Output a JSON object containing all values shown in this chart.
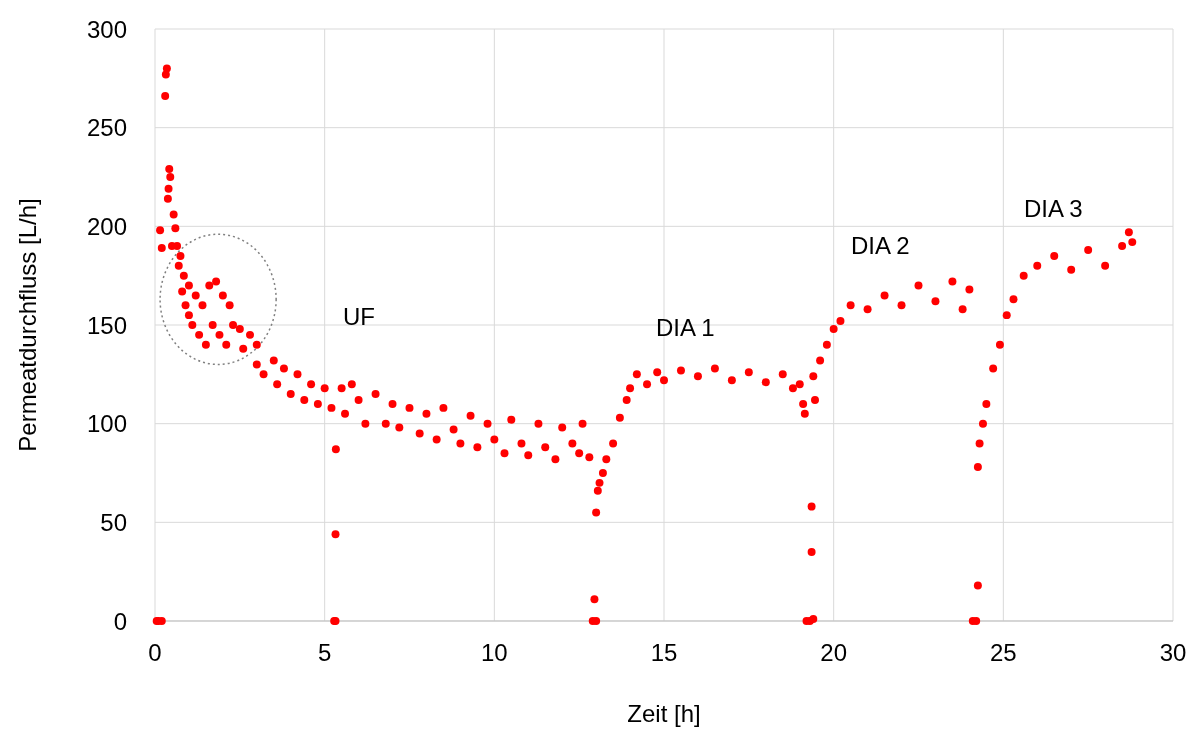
{
  "chart_data": {
    "type": "scatter",
    "xlabel": "Zeit [h]",
    "ylabel": "Permeatdurchfluss [L/h]",
    "xlim": [
      0,
      30
    ],
    "xticks": [
      0,
      5,
      10,
      15,
      20,
      25,
      30
    ],
    "ylim": [
      0,
      300
    ],
    "yticks": [
      0,
      50,
      100,
      150,
      200,
      250,
      300
    ],
    "grid": true,
    "marker": "circle",
    "annotations": [
      "UF",
      "DIA 1",
      "DIA 2",
      "DIA 3"
    ],
    "series": [
      {
        "color": "#ff0000",
        "x": [
          0.05,
          0.1,
          0.2,
          0.15,
          0.2,
          0.3,
          0.32,
          0.35,
          0.38,
          0.4,
          0.42,
          0.45,
          0.5,
          0.55,
          0.6,
          0.65,
          0.7,
          0.75,
          0.8,
          0.85,
          0.9,
          1.0,
          1.0,
          1.1,
          1.2,
          1.3,
          1.4,
          1.5,
          1.6,
          1.7,
          1.8,
          1.9,
          2.0,
          2.1,
          2.2,
          2.3,
          2.5,
          2.6,
          2.8,
          3.0,
          3.0,
          3.2,
          3.5,
          3.6,
          3.8,
          4.0,
          4.2,
          4.4,
          4.6,
          4.8,
          5.0,
          5.2,
          5.28,
          5.32,
          5.33,
          5.32,
          5.5,
          5.6,
          5.8,
          6.0,
          6.2,
          6.5,
          6.8,
          7.0,
          7.2,
          7.5,
          7.8,
          8.0,
          8.3,
          8.5,
          8.8,
          9.0,
          9.3,
          9.5,
          9.8,
          10.0,
          10.3,
          10.5,
          10.8,
          11.0,
          11.3,
          11.5,
          11.8,
          12.0,
          12.3,
          12.5,
          12.6,
          12.8,
          12.9,
          13.0,
          12.95,
          13.0,
          13.05,
          13.1,
          13.2,
          13.3,
          13.5,
          13.7,
          13.9,
          14.0,
          14.2,
          14.5,
          14.8,
          15.0,
          15.5,
          16.0,
          16.5,
          17.0,
          17.5,
          18.0,
          18.5,
          18.8,
          19.0,
          19.1,
          19.15,
          19.2,
          19.3,
          19.4,
          19.35,
          19.35,
          19.45,
          19.4,
          19.6,
          19.8,
          20.0,
          20.2,
          20.5,
          21.0,
          21.5,
          22.0,
          22.5,
          23.0,
          23.5,
          24.0,
          23.8,
          24.1,
          24.2,
          24.25,
          24.25,
          24.3,
          24.4,
          24.5,
          24.7,
          24.9,
          25.1,
          25.3,
          25.6,
          26.0,
          26.5,
          27.0,
          27.5,
          28.0,
          28.5,
          28.7,
          28.8
        ],
        "values": [
          0,
          0,
          0,
          198,
          189,
          266,
          277,
          280,
          214,
          219,
          229,
          225,
          190,
          206,
          199,
          190,
          180,
          185,
          167,
          175,
          160,
          155,
          170,
          150,
          165,
          145,
          160,
          140,
          170,
          150,
          172,
          145,
          165,
          140,
          160,
          150,
          148,
          138,
          145,
          130,
          140,
          125,
          132,
          120,
          128,
          115,
          125,
          112,
          120,
          110,
          118,
          108,
          0,
          0,
          87,
          44,
          118,
          105,
          120,
          112,
          100,
          115,
          100,
          110,
          98,
          108,
          95,
          105,
          92,
          108,
          97,
          90,
          104,
          88,
          100,
          92,
          85,
          102,
          90,
          84,
          100,
          88,
          82,
          98,
          90,
          85,
          100,
          83,
          0,
          0,
          11,
          55,
          66,
          70,
          75,
          82,
          90,
          103,
          112,
          118,
          125,
          120,
          126,
          122,
          127,
          124,
          128,
          122,
          126,
          121,
          125,
          118,
          120,
          110,
          105,
          0,
          0,
          1,
          58,
          35,
          112,
          124,
          132,
          140,
          148,
          152,
          160,
          158,
          165,
          160,
          170,
          162,
          172,
          168,
          158,
          0,
          0,
          18,
          78,
          90,
          100,
          110,
          128,
          140,
          155,
          163,
          175,
          180,
          185,
          178,
          188,
          180,
          190,
          197,
          192
        ]
      }
    ]
  }
}
